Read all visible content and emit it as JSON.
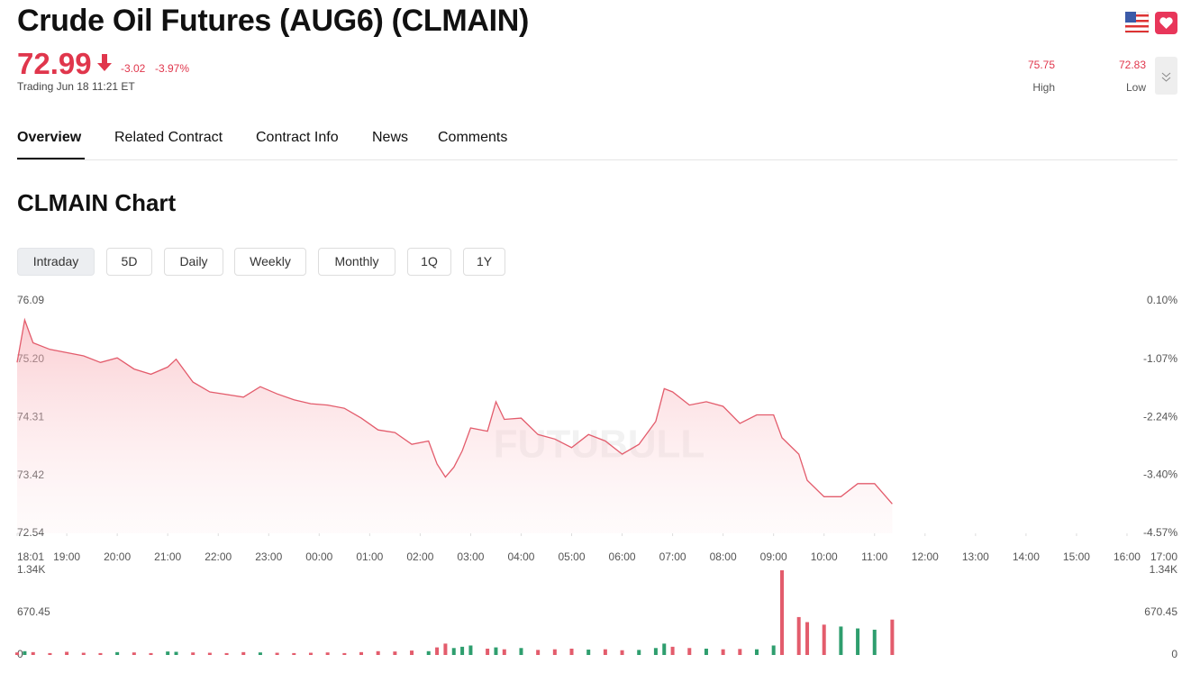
{
  "header": {
    "title": "Crude Oil Futures (AUG6) (CLMAIN)",
    "price": "72.99",
    "change": "-3.02",
    "change_pct": "-3.97%",
    "status": "Trading Jun 18 11:21 ET",
    "high": "75.75",
    "high_label": "High",
    "low": "72.83",
    "low_label": "Low"
  },
  "tabs": [
    "Overview",
    "Related Contract",
    "Contract Info",
    "News",
    "Comments"
  ],
  "section_title": "CLMAIN Chart",
  "periods": [
    "Intraday",
    "5D",
    "Daily",
    "Weekly",
    "Monthly",
    "1Q",
    "1Y"
  ],
  "watermark": "FUTUBULL",
  "chart_data": [
    {
      "type": "area",
      "color": "#e35c6c",
      "x": [
        "18:01",
        "18:10",
        "18:20",
        "18:40",
        "19:00",
        "19:20",
        "19:40",
        "20:00",
        "20:20",
        "20:40",
        "21:00",
        "21:10",
        "21:30",
        "21:50",
        "22:10",
        "22:30",
        "22:50",
        "23:10",
        "23:30",
        "23:50",
        "00:10",
        "00:30",
        "00:50",
        "01:10",
        "01:30",
        "01:50",
        "02:10",
        "02:20",
        "02:30",
        "02:40",
        "02:50",
        "03:00",
        "03:20",
        "03:30",
        "03:40",
        "04:00",
        "04:20",
        "04:40",
        "05:00",
        "05:20",
        "05:40",
        "06:00",
        "06:20",
        "06:40",
        "06:50",
        "07:00",
        "07:20",
        "07:40",
        "08:00",
        "08:20",
        "08:40",
        "09:00",
        "09:10",
        "09:30",
        "09:40",
        "10:00",
        "10:20",
        "10:40",
        "11:00",
        "11:21"
      ],
      "values": [
        75.15,
        75.8,
        75.45,
        75.35,
        75.3,
        75.25,
        75.15,
        75.22,
        75.05,
        74.97,
        75.08,
        75.2,
        74.85,
        74.7,
        74.66,
        74.62,
        74.78,
        74.67,
        74.58,
        74.52,
        74.5,
        74.45,
        74.3,
        74.12,
        74.08,
        73.9,
        73.95,
        73.6,
        73.4,
        73.55,
        73.8,
        74.15,
        74.1,
        74.55,
        74.28,
        74.3,
        74.05,
        73.98,
        73.85,
        74.05,
        73.95,
        73.75,
        73.9,
        74.25,
        74.75,
        74.7,
        74.5,
        74.55,
        74.48,
        74.22,
        74.35,
        74.35,
        74,
        73.75,
        73.35,
        73.1,
        73.1,
        73.3,
        73.3,
        72.99
      ],
      "xlim": [
        "18:01",
        "17:00"
      ],
      "xticks": [
        "18:01",
        "19:00",
        "20:00",
        "21:00",
        "22:00",
        "23:00",
        "00:00",
        "01:00",
        "02:00",
        "03:00",
        "04:00",
        "05:00",
        "06:00",
        "07:00",
        "08:00",
        "09:00",
        "10:00",
        "11:00",
        "12:00",
        "13:00",
        "14:00",
        "15:00",
        "16:00",
        "17:00"
      ],
      "ylim": [
        72.54,
        76.09
      ],
      "yticks": [
        76.09,
        {
          "value": 75.2,
          "label": "75.20"
        },
        74.31,
        73.42,
        72.54
      ],
      "y2lim": [
        -4.57,
        0.1
      ],
      "y2ticks": [
        {
          "value": 0.1,
          "label": "0.10%"
        },
        {
          "value": -1.07,
          "label": "-1.07%"
        },
        {
          "value": -2.24,
          "label": "-2.24%"
        },
        {
          "value": -3.4,
          "label": "-3.40%"
        },
        {
          "value": -4.57,
          "label": "-4.57%"
        }
      ]
    },
    {
      "type": "bar",
      "up_color": "#2e9e6e",
      "down_color": "#e35c6c",
      "x": [
        "18:01",
        "18:10",
        "18:20",
        "18:40",
        "19:00",
        "19:20",
        "19:40",
        "20:00",
        "20:20",
        "20:40",
        "21:00",
        "21:10",
        "21:30",
        "21:50",
        "22:10",
        "22:30",
        "22:50",
        "23:10",
        "23:30",
        "23:50",
        "00:10",
        "00:30",
        "00:50",
        "01:10",
        "01:30",
        "01:50",
        "02:10",
        "02:20",
        "02:30",
        "02:40",
        "02:50",
        "03:00",
        "03:20",
        "03:30",
        "03:40",
        "04:00",
        "04:20",
        "04:40",
        "05:00",
        "05:20",
        "05:40",
        "06:00",
        "06:20",
        "06:40",
        "06:50",
        "07:00",
        "07:20",
        "07:40",
        "08:00",
        "08:20",
        "08:40",
        "09:00",
        "09:10",
        "09:30",
        "09:40",
        "10:00",
        "10:20",
        "10:40",
        "11:00",
        "11:21"
      ],
      "values": [
        40,
        60,
        45,
        30,
        50,
        35,
        30,
        45,
        40,
        30,
        55,
        50,
        40,
        35,
        30,
        45,
        40,
        35,
        30,
        35,
        40,
        30,
        45,
        60,
        55,
        70,
        60,
        120,
        180,
        110,
        130,
        150,
        100,
        120,
        90,
        110,
        80,
        90,
        100,
        85,
        90,
        75,
        80,
        110,
        180,
        130,
        110,
        100,
        90,
        95,
        90,
        150,
        1340,
        600,
        520,
        480,
        450,
        420,
        400,
        560
      ],
      "xlim": [
        "18:01",
        "17:00"
      ],
      "ylim": [
        0,
        1340
      ],
      "yticks": [
        {
          "value": 1340,
          "label": "1.34K"
        },
        670.45,
        0
      ],
      "y2lim": [
        0,
        1340
      ],
      "y2ticks": [
        {
          "value": 1340,
          "label": "1.34K"
        },
        670.45,
        0
      ]
    }
  ]
}
